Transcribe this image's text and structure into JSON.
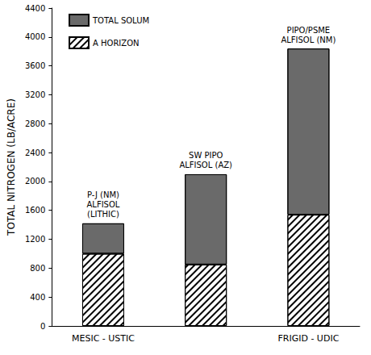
{
  "chart_data": {
    "type": "bar",
    "stacked": true,
    "categories": [
      "MESIC - USTIC",
      null,
      "FRIGID - UDIC"
    ],
    "annotations": [
      "P-J (NM)\nALFISOL\n(LITHIC)",
      "SW PIPO\nALFISOL (AZ)",
      "PIPO/PSME\nALFISOL (NM)"
    ],
    "y_label": "TOTAL NITROGEN (LB/ACRE)",
    "series": [
      {
        "name": "A HORIZON",
        "color": "#ffffff",
        "values": [
          1000,
          850,
          1540
        ]
      },
      {
        "name": "TOTAL SOLUM",
        "color": "#6a6a6a",
        "values": [
          420,
          1250,
          2300
        ]
      }
    ],
    "ylim": [
      0,
      4400
    ],
    "yticks": [
      0,
      400,
      800,
      1200,
      1600,
      2000,
      2400,
      2800,
      3200,
      3600,
      4000,
      4400
    ],
    "grid": false,
    "legend": "top-left"
  }
}
